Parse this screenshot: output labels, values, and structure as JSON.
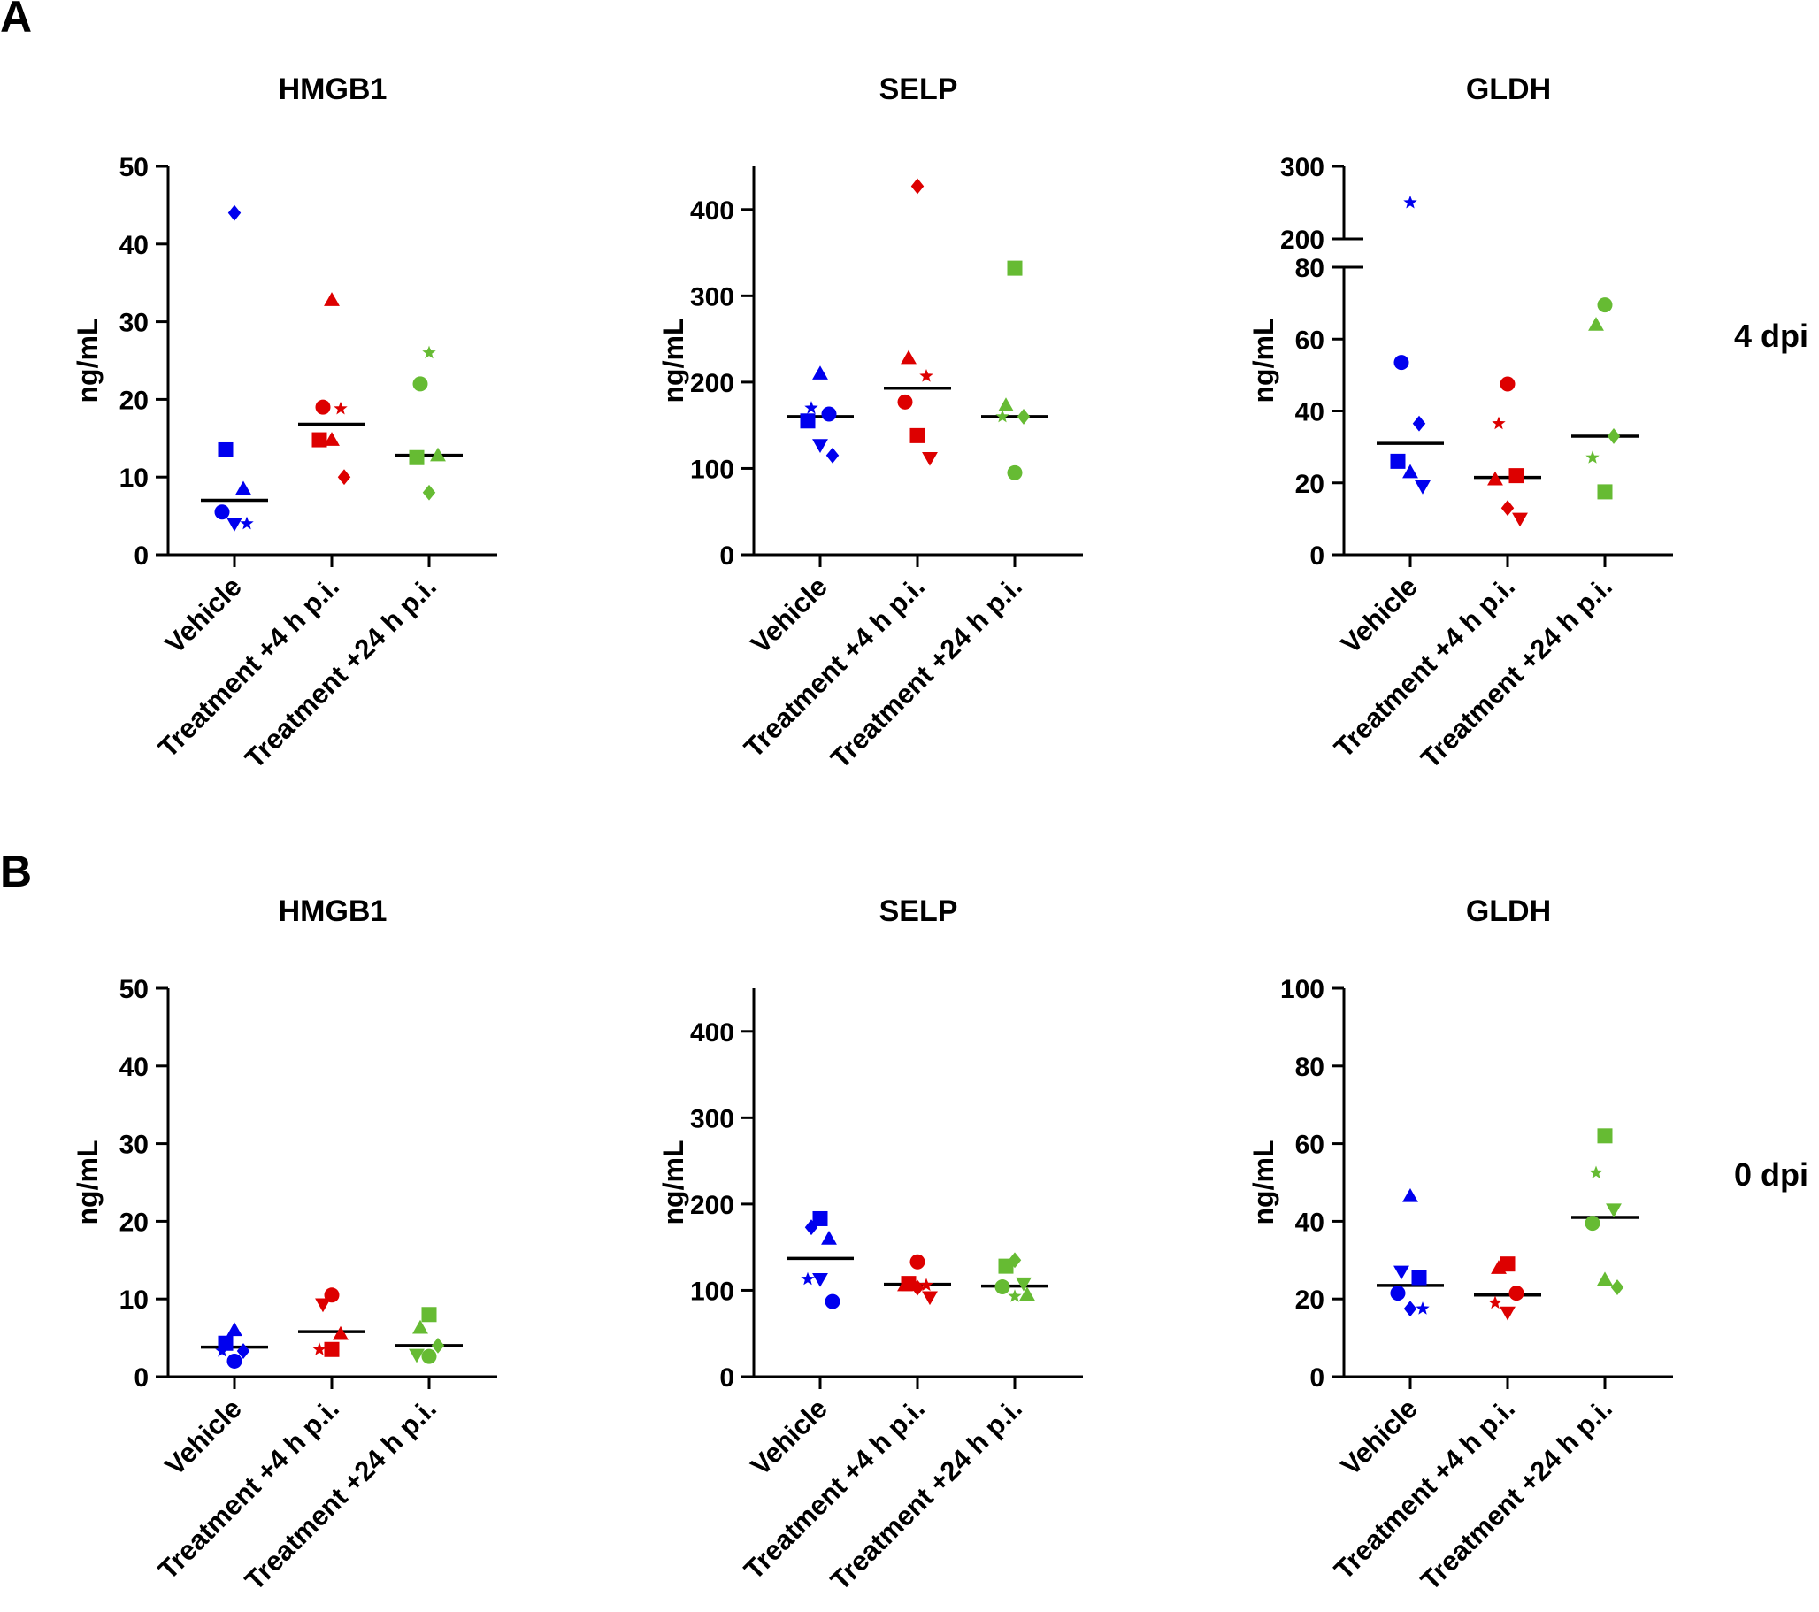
{
  "panels": [
    "A",
    "B"
  ],
  "row_labels": [
    "4 dpi",
    "0 dpi"
  ],
  "colors": {
    "vehicle": "#0000ee",
    "treatment_4h": "#dd0000",
    "treatment_24h": "#66bb33",
    "median": "#000000"
  },
  "chart_data": [
    {
      "type": "scatter",
      "panel": "A",
      "title": "HMGB1",
      "ylabel": "ng/mL",
      "ylim": [
        0,
        50
      ],
      "yticks": [
        0,
        10,
        20,
        30,
        40,
        50
      ],
      "categories": [
        "Vehicle",
        "Treatment +4 h p.i.",
        "Treatment +24 h p.i."
      ],
      "series": [
        {
          "points": [
            {
              "shape": "diamond",
              "y": 44
            },
            {
              "shape": "square",
              "y": 13.5
            },
            {
              "shape": "triangle-up",
              "y": 8.5
            },
            {
              "shape": "circle",
              "y": 5.5
            },
            {
              "shape": "triangle-down",
              "y": 4
            },
            {
              "shape": "star",
              "y": 4
            }
          ],
          "median": 7
        },
        {
          "points": [
            {
              "shape": "triangle-up",
              "y": 32.8
            },
            {
              "shape": "circle",
              "y": 19
            },
            {
              "shape": "star",
              "y": 18.8
            },
            {
              "shape": "square",
              "y": 14.8
            },
            {
              "shape": "triangle-up",
              "y": 14.8
            },
            {
              "shape": "diamond",
              "y": 10
            }
          ],
          "median": 16.8
        },
        {
          "points": [
            {
              "shape": "star",
              "y": 26
            },
            {
              "shape": "circle",
              "y": 22
            },
            {
              "shape": "triangle-up",
              "y": 12.8
            },
            {
              "shape": "square",
              "y": 12.5
            },
            {
              "shape": "diamond",
              "y": 8
            }
          ],
          "median": 12.8
        }
      ]
    },
    {
      "type": "scatter",
      "panel": "A",
      "title": "SELP",
      "ylabel": "ng/mL",
      "ylim": [
        0,
        450
      ],
      "yticks": [
        0,
        100,
        200,
        300,
        400
      ],
      "categories": [
        "Vehicle",
        "Treatment +4 h p.i.",
        "Treatment +24 h p.i."
      ],
      "series": [
        {
          "points": [
            {
              "shape": "triangle-up",
              "y": 210
            },
            {
              "shape": "star",
              "y": 170
            },
            {
              "shape": "circle",
              "y": 163
            },
            {
              "shape": "square",
              "y": 155
            },
            {
              "shape": "triangle-down",
              "y": 127
            },
            {
              "shape": "diamond",
              "y": 115
            }
          ],
          "median": 160
        },
        {
          "points": [
            {
              "shape": "diamond",
              "y": 427
            },
            {
              "shape": "triangle-up",
              "y": 228
            },
            {
              "shape": "star",
              "y": 207
            },
            {
              "shape": "circle",
              "y": 177
            },
            {
              "shape": "square",
              "y": 138
            },
            {
              "shape": "triangle-down",
              "y": 112
            }
          ],
          "median": 193
        },
        {
          "points": [
            {
              "shape": "square",
              "y": 332
            },
            {
              "shape": "triangle-up",
              "y": 173
            },
            {
              "shape": "diamond",
              "y": 160
            },
            {
              "shape": "star",
              "y": 160
            },
            {
              "shape": "circle",
              "y": 95
            }
          ],
          "median": 160
        }
      ]
    },
    {
      "type": "scatter",
      "panel": "A",
      "title": "GLDH",
      "ylabel": "ng/mL",
      "ylim": [
        0,
        80
      ],
      "yticks": [
        0,
        20,
        40,
        60,
        80
      ],
      "axis_break": {
        "upper_ticks": [
          200,
          300
        ],
        "upper_range": [
          200,
          300
        ]
      },
      "categories": [
        "Vehicle",
        "Treatment +4 h p.i.",
        "Treatment +24 h p.i."
      ],
      "series": [
        {
          "points": [
            {
              "shape": "star",
              "y": 250
            },
            {
              "shape": "circle",
              "y": 53.5
            },
            {
              "shape": "diamond",
              "y": 36.5
            },
            {
              "shape": "square",
              "y": 26
            },
            {
              "shape": "triangle-up",
              "y": 23
            },
            {
              "shape": "triangle-down",
              "y": 19
            }
          ],
          "median": 31
        },
        {
          "points": [
            {
              "shape": "circle",
              "y": 47.5
            },
            {
              "shape": "star",
              "y": 36.5
            },
            {
              "shape": "square",
              "y": 22
            },
            {
              "shape": "triangle-up",
              "y": 21
            },
            {
              "shape": "diamond",
              "y": 13
            },
            {
              "shape": "triangle-down",
              "y": 10
            }
          ],
          "median": 21.5
        },
        {
          "points": [
            {
              "shape": "circle",
              "y": 69.5
            },
            {
              "shape": "triangle-up",
              "y": 64
            },
            {
              "shape": "diamond",
              "y": 33
            },
            {
              "shape": "star",
              "y": 27
            },
            {
              "shape": "square",
              "y": 17.5
            }
          ],
          "median": 33
        }
      ]
    },
    {
      "type": "scatter",
      "panel": "B",
      "title": "HMGB1",
      "ylabel": "ng/mL",
      "ylim": [
        0,
        50
      ],
      "yticks": [
        0,
        10,
        20,
        30,
        40,
        50
      ],
      "categories": [
        "Vehicle",
        "Treatment +4 h p.i.",
        "Treatment +24 h p.i."
      ],
      "series": [
        {
          "points": [
            {
              "shape": "triangle-up",
              "y": 6
            },
            {
              "shape": "square",
              "y": 4.3
            },
            {
              "shape": "diamond",
              "y": 3.3
            },
            {
              "shape": "star",
              "y": 3.3
            },
            {
              "shape": "circle",
              "y": 2
            }
          ],
          "median": 3.8
        },
        {
          "points": [
            {
              "shape": "circle",
              "y": 10.5
            },
            {
              "shape": "triangle-down",
              "y": 9.3
            },
            {
              "shape": "triangle-up",
              "y": 5.5
            },
            {
              "shape": "star",
              "y": 3.5
            },
            {
              "shape": "square",
              "y": 3.5
            }
          ],
          "median": 5.8
        },
        {
          "points": [
            {
              "shape": "square",
              "y": 8
            },
            {
              "shape": "triangle-up",
              "y": 6.3
            },
            {
              "shape": "diamond",
              "y": 4
            },
            {
              "shape": "triangle-down",
              "y": 2.8
            },
            {
              "shape": "circle",
              "y": 2.6
            }
          ],
          "median": 4
        }
      ]
    },
    {
      "type": "scatter",
      "panel": "B",
      "title": "SELP",
      "ylabel": "ng/mL",
      "ylim": [
        0,
        450
      ],
      "yticks": [
        0,
        100,
        200,
        300,
        400
      ],
      "categories": [
        "Vehicle",
        "Treatment +4 h p.i.",
        "Treatment +24 h p.i."
      ],
      "series": [
        {
          "points": [
            {
              "shape": "square",
              "y": 183
            },
            {
              "shape": "diamond",
              "y": 173
            },
            {
              "shape": "triangle-up",
              "y": 160
            },
            {
              "shape": "star",
              "y": 113
            },
            {
              "shape": "triangle-down",
              "y": 113
            },
            {
              "shape": "circle",
              "y": 87
            }
          ],
          "median": 137
        },
        {
          "points": [
            {
              "shape": "circle",
              "y": 133
            },
            {
              "shape": "square",
              "y": 108
            },
            {
              "shape": "star",
              "y": 106
            },
            {
              "shape": "triangle-up",
              "y": 106
            },
            {
              "shape": "diamond",
              "y": 103
            },
            {
              "shape": "triangle-down",
              "y": 92
            }
          ],
          "median": 107
        },
        {
          "points": [
            {
              "shape": "diamond",
              "y": 135
            },
            {
              "shape": "square",
              "y": 128
            },
            {
              "shape": "triangle-down",
              "y": 108
            },
            {
              "shape": "circle",
              "y": 104
            },
            {
              "shape": "star",
              "y": 93
            },
            {
              "shape": "triangle-up",
              "y": 95
            }
          ],
          "median": 105
        }
      ]
    },
    {
      "type": "scatter",
      "panel": "B",
      "title": "GLDH",
      "ylabel": "ng/mL",
      "ylim": [
        0,
        100
      ],
      "yticks": [
        0,
        20,
        40,
        60,
        80,
        100
      ],
      "categories": [
        "Vehicle",
        "Treatment +4 h p.i.",
        "Treatment +24 h p.i."
      ],
      "series": [
        {
          "points": [
            {
              "shape": "triangle-up",
              "y": 46.5
            },
            {
              "shape": "triangle-down",
              "y": 27
            },
            {
              "shape": "square",
              "y": 25.5
            },
            {
              "shape": "circle",
              "y": 21.5
            },
            {
              "shape": "diamond",
              "y": 17.5
            },
            {
              "shape": "star",
              "y": 17.5
            }
          ],
          "median": 23.5
        },
        {
          "points": [
            {
              "shape": "square",
              "y": 29
            },
            {
              "shape": "triangle-up",
              "y": 28
            },
            {
              "shape": "circle",
              "y": 21.5
            },
            {
              "shape": "star",
              "y": 19
            },
            {
              "shape": "triangle-down",
              "y": 16.5
            }
          ],
          "median": 21
        },
        {
          "points": [
            {
              "shape": "square",
              "y": 62
            },
            {
              "shape": "star",
              "y": 52.5
            },
            {
              "shape": "triangle-down",
              "y": 43
            },
            {
              "shape": "circle",
              "y": 39.5
            },
            {
              "shape": "triangle-up",
              "y": 25
            },
            {
              "shape": "diamond",
              "y": 23
            }
          ],
          "median": 41
        }
      ]
    }
  ]
}
